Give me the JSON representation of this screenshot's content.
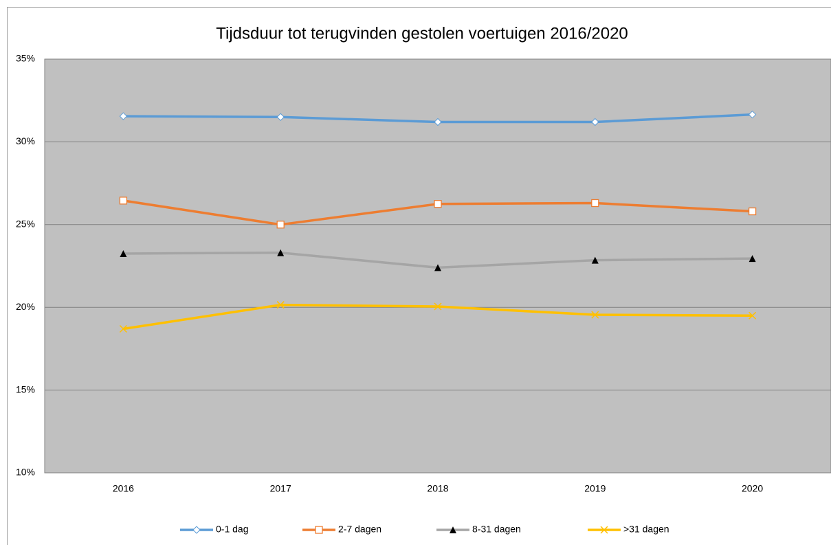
{
  "chart_data": {
    "type": "line",
    "title": "Tijdsduur tot terugvinden gestolen voertuigen 2016/2020",
    "categories": [
      "2016",
      "2017",
      "2018",
      "2019",
      "2020"
    ],
    "series": [
      {
        "name": "0-1 dag",
        "color": "#5b9bd5",
        "marker": "diamond",
        "values": [
          31.55,
          31.5,
          31.2,
          31.2,
          31.65
        ]
      },
      {
        "name": "2-7 dagen",
        "color": "#ed7d31",
        "marker": "square",
        "values": [
          26.45,
          25.0,
          26.25,
          26.3,
          25.8
        ]
      },
      {
        "name": "8-31 dagen",
        "color": "#a5a5a5",
        "marker": "triangle",
        "values": [
          23.25,
          23.3,
          22.4,
          22.85,
          22.95
        ]
      },
      {
        "name": ">31 dagen",
        "color": "#ffc000",
        "marker": "cross",
        "values": [
          18.7,
          20.15,
          20.05,
          19.55,
          19.5
        ]
      }
    ],
    "ylim": [
      10,
      35
    ],
    "yticks": [
      {
        "value": 10,
        "label": "10%"
      },
      {
        "value": 15,
        "label": "15%"
      },
      {
        "value": 20,
        "label": "20%"
      },
      {
        "value": 25,
        "label": "25%"
      },
      {
        "value": 30,
        "label": "30%"
      },
      {
        "value": 35,
        "label": "35%"
      }
    ],
    "grid": true,
    "legend": "bottom",
    "plot_background": "#c0c0c0"
  }
}
